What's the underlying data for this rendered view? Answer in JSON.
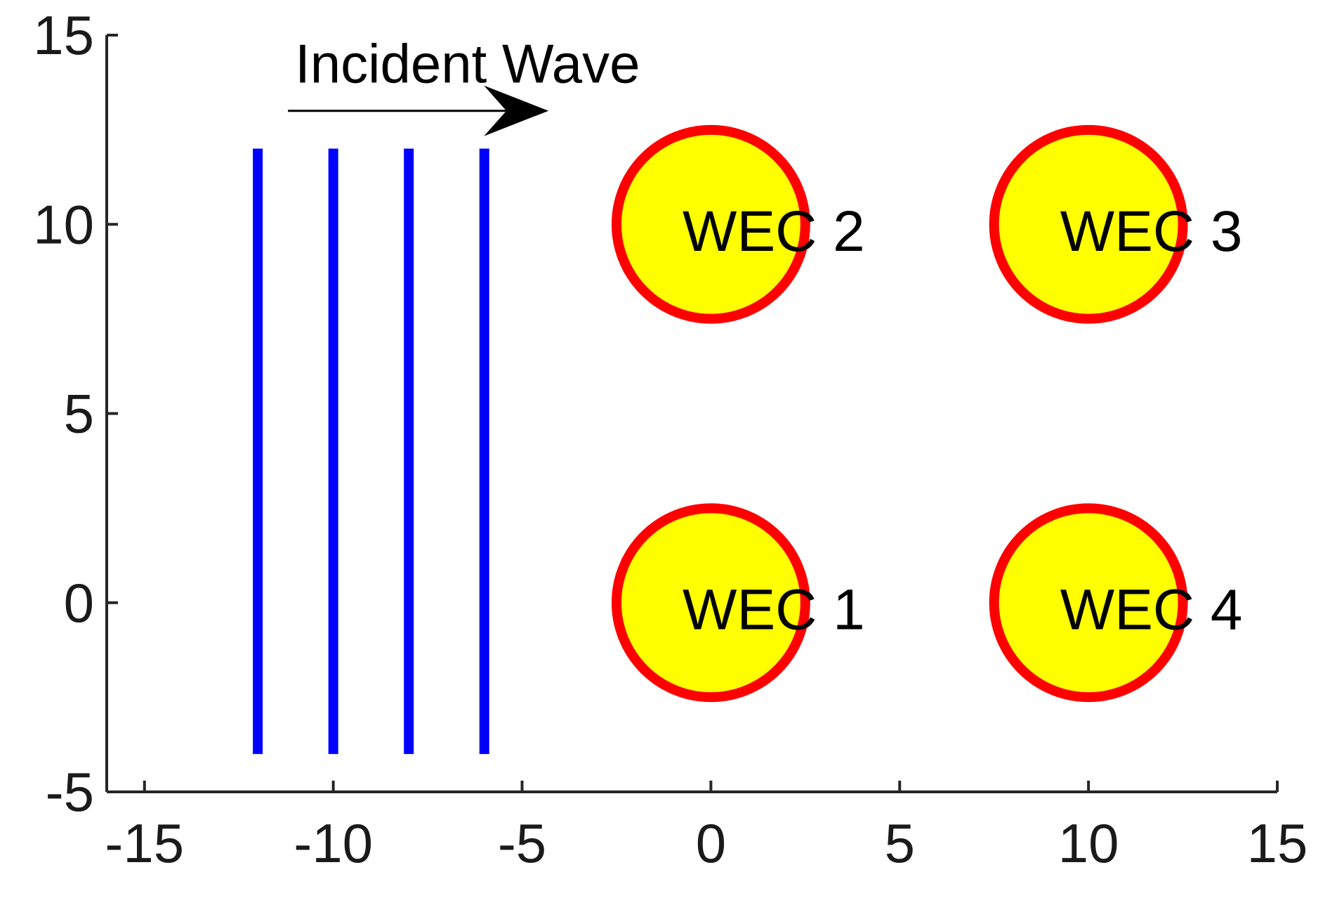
{
  "chart_data": {
    "type": "scatter",
    "title": "",
    "xlabel": "",
    "ylabel": "",
    "xlim": [
      -16,
      15
    ],
    "ylim": [
      -5,
      15
    ],
    "xticks": [
      -15,
      -10,
      -5,
      0,
      5,
      10,
      15
    ],
    "yticks": [
      -5,
      0,
      5,
      10,
      15
    ],
    "xtick_labels": [
      "-15",
      "-10",
      "-5",
      "0",
      "5",
      "10",
      "15"
    ],
    "ytick_labels": [
      "-5",
      "0",
      "5",
      "10",
      "15"
    ],
    "grid": false,
    "devices": [
      {
        "label": "WEC 1",
        "x": 0,
        "y": 0,
        "radius": 2.5
      },
      {
        "label": "WEC 2",
        "x": 0,
        "y": 10,
        "radius": 2.5
      },
      {
        "label": "WEC 3",
        "x": 10,
        "y": 10,
        "radius": 2.5
      },
      {
        "label": "WEC 4",
        "x": 10,
        "y": 0,
        "radius": 2.5
      }
    ],
    "wave_crests": [
      {
        "x": -12,
        "y_start": -4,
        "y_end": 12
      },
      {
        "x": -10,
        "y_start": -4,
        "y_end": 12
      },
      {
        "x": -8,
        "y_start": -4,
        "y_end": 12
      },
      {
        "x": -6,
        "y_start": -4,
        "y_end": 12
      }
    ],
    "annotation": {
      "text": "Incident Wave",
      "arrow_from": [
        -11.2,
        13
      ],
      "arrow_to": [
        -4.3,
        13
      ]
    },
    "colors": {
      "device_fill": "#ffff00",
      "device_edge": "#ff0000",
      "wave": "#0000ff",
      "arrow": "#000000",
      "axis": "#262626"
    }
  }
}
